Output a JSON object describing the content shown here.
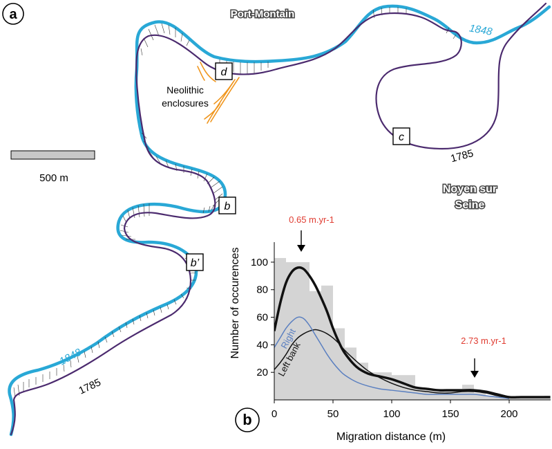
{
  "map": {
    "panel_label": "a",
    "place_port_montain": "Port-Montain",
    "place_noyen": [
      "Noyen sur",
      "Seine"
    ],
    "neolithic_label": [
      "Neolithic",
      "enclosures"
    ],
    "year_1848_top": "1848",
    "year_1785_top": "1785",
    "year_1848_bottom": "1848",
    "year_1785_bottom": "1785",
    "scale_label": "500 m",
    "boxes": {
      "d": "d",
      "c": "c",
      "b": "b",
      "b_prime": "b’"
    },
    "colors": {
      "river_1848": "#29a8d6",
      "river_1785": "#4b2a6e",
      "neolithic": "#f0961e"
    }
  },
  "chart_data": {
    "type": "histogram",
    "panel_label": "b",
    "xlabel": "Migration distance (m)",
    "ylabel": "Number of occurences",
    "xlim": [
      0,
      235
    ],
    "ylim": [
      0,
      110
    ],
    "xticks": [
      0,
      50,
      100,
      150,
      200
    ],
    "yticks": [
      20,
      40,
      60,
      80,
      100
    ],
    "bin_width": 10,
    "bins": [
      {
        "x0": 0,
        "count": 103
      },
      {
        "x0": 10,
        "count": 100
      },
      {
        "x0": 20,
        "count": 100
      },
      {
        "x0": 30,
        "count": 79
      },
      {
        "x0": 40,
        "count": 83
      },
      {
        "x0": 50,
        "count": 52
      },
      {
        "x0": 60,
        "count": 38
      },
      {
        "x0": 70,
        "count": 27
      },
      {
        "x0": 80,
        "count": 20
      },
      {
        "x0": 90,
        "count": 20
      },
      {
        "x0": 100,
        "count": 18
      },
      {
        "x0": 110,
        "count": 18
      },
      {
        "x0": 120,
        "count": 8
      },
      {
        "x0": 130,
        "count": 8
      },
      {
        "x0": 140,
        "count": 8
      },
      {
        "x0": 150,
        "count": 8
      },
      {
        "x0": 160,
        "count": 11
      },
      {
        "x0": 170,
        "count": 5
      },
      {
        "x0": 180,
        "count": 3
      },
      {
        "x0": 190,
        "count": 2
      },
      {
        "x0": 200,
        "count": 2
      },
      {
        "x0": 210,
        "count": 2
      },
      {
        "x0": 220,
        "count": 2
      },
      {
        "x0": 230,
        "count": 3
      }
    ],
    "series": [
      {
        "name": "",
        "color": "#111111",
        "width": 3.5,
        "x": [
          0,
          5,
          10,
          15,
          20,
          25,
          30,
          35,
          40,
          45,
          50,
          55,
          60,
          70,
          80,
          90,
          100,
          110,
          120,
          130,
          140,
          150,
          160,
          170,
          180,
          190,
          200,
          210,
          220,
          235
        ],
        "y": [
          50,
          70,
          85,
          93,
          96,
          95,
          90,
          83,
          74,
          64,
          52,
          42,
          34,
          24,
          19,
          17,
          15,
          12,
          9,
          8,
          7,
          7,
          7,
          7,
          6,
          4,
          2,
          2,
          2,
          2
        ]
      },
      {
        "name": "Right",
        "color": "#5a7fc0",
        "width": 1.5,
        "x": [
          0,
          5,
          10,
          15,
          20,
          25,
          30,
          35,
          40,
          45,
          50,
          55,
          60,
          70,
          80,
          90,
          100,
          110,
          120,
          130,
          140,
          150,
          160,
          170,
          180,
          190,
          200
        ],
        "y": [
          38,
          45,
          52,
          57,
          60,
          59,
          54,
          47,
          40,
          33,
          27,
          22,
          18,
          13,
          10,
          8,
          7,
          6,
          5,
          4,
          4,
          4,
          4,
          4,
          3,
          2,
          1
        ]
      },
      {
        "name": "Left bank",
        "color": "#111111",
        "width": 1.5,
        "x": [
          0,
          5,
          10,
          15,
          20,
          25,
          30,
          35,
          40,
          45,
          50,
          55,
          60,
          70,
          80,
          90,
          100,
          110,
          120,
          130,
          140,
          150,
          160,
          170,
          180,
          190,
          200
        ],
        "y": [
          22,
          27,
          33,
          40,
          45,
          48,
          50,
          51,
          50,
          48,
          45,
          41,
          36,
          28,
          21,
          16,
          12,
          9,
          7,
          6,
          5,
          5,
          6,
          6,
          5,
          3,
          1
        ]
      }
    ],
    "annotations": [
      {
        "text": "0.65 m.yr-1",
        "x": 23,
        "color": "#e03c31"
      },
      {
        "text": "2.73 m.yr-1",
        "x": 170,
        "color": "#e03c31"
      }
    ]
  }
}
